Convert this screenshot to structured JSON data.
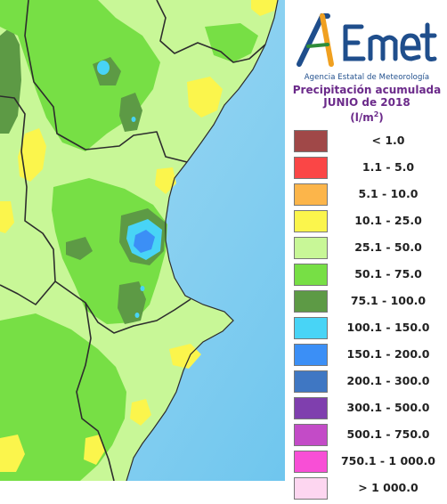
{
  "logo": {
    "brand": "AEmet",
    "subtitle": "Agencia Estatal de Meteorología"
  },
  "title": {
    "line1": "Precipitación acumulada",
    "line2": "JUNIO de 2018",
    "unit": "(l/m",
    "unit_exp": "2",
    "unit_close": ")"
  },
  "legend": [
    {
      "label": "< 1.0",
      "color": "#a04848"
    },
    {
      "label": "1.1 - 5.0",
      "color": "#fa4646"
    },
    {
      "label": "5.1 - 10.0",
      "color": "#fcb54a"
    },
    {
      "label": "10.1 - 25.0",
      "color": "#fbf54c"
    },
    {
      "label": "25.1 - 50.0",
      "color": "#c8f797"
    },
    {
      "label": "50.1 - 75.0",
      "color": "#77df45"
    },
    {
      "label": "75.1 - 100.0",
      "color": "#5d9a45"
    },
    {
      "label": "100.1 - 150.0",
      "color": "#48d4f6"
    },
    {
      "label": "150.1 - 200.0",
      "color": "#3b8ff6"
    },
    {
      "label": "200.1 - 300.0",
      "color": "#3f77c3"
    },
    {
      "label": "300.1 - 500.0",
      "color": "#7f3fae"
    },
    {
      "label": "500.1 - 750.0",
      "color": "#c34bc7"
    },
    {
      "label": "750.1 - 1 000.0",
      "color": "#f84fd6"
    },
    {
      "label": "> 1 000.0",
      "color": "#fdd6f0"
    }
  ],
  "map": {
    "sea_color": "#8fd3f2",
    "land_base_color": "#c8f797"
  }
}
